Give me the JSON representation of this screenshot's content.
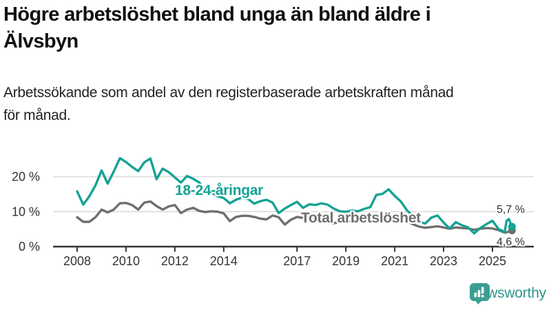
{
  "header": {
    "title_line1": "Högre arbetslöshet bland unga än bland äldre i",
    "title_line2": "Älvsbyn",
    "subtitle_line1": "Arbetssökande som andel av den registerbaserade arbetskraften månad",
    "subtitle_line2": "för månad."
  },
  "chart_data": {
    "type": "line",
    "title": "Högre arbetslöshet bland unga än bland äldre i Älvsbyn",
    "subtitle": "Arbetssökande som andel av den registerbaserade arbetskraften månad för månad.",
    "unit": "%",
    "grid": "horizontal",
    "xlim": [
      2007.0,
      2026.7
    ],
    "ylim": [
      0,
      28
    ],
    "x_ticks": [
      2008,
      2010,
      2012,
      2014,
      2017,
      2019,
      2021,
      2023,
      2025
    ],
    "x_tick_labels": [
      "2008",
      "2010",
      "2012",
      "2014",
      "2017",
      "2019",
      "2021",
      "2023",
      "2025"
    ],
    "y_ticks": [
      0,
      10,
      20
    ],
    "y_tick_labels": [
      "0 %",
      "10 %",
      "20 %"
    ],
    "x": [
      2008,
      2008.25,
      2008.5,
      2008.75,
      2009,
      2009.25,
      2009.5,
      2009.75,
      2010,
      2010.25,
      2010.5,
      2010.75,
      2011,
      2011.25,
      2011.5,
      2011.75,
      2012,
      2012.25,
      2012.5,
      2012.75,
      2013,
      2013.25,
      2013.5,
      2013.75,
      2014,
      2014.25,
      2014.5,
      2014.75,
      2015,
      2015.25,
      2015.5,
      2015.75,
      2016,
      2016.25,
      2016.5,
      2016.75,
      2017,
      2017.25,
      2017.5,
      2017.75,
      2018,
      2018.25,
      2018.5,
      2018.75,
      2019,
      2019.25,
      2019.5,
      2019.75,
      2020,
      2020.25,
      2020.5,
      2020.75,
      2021,
      2021.25,
      2021.5,
      2021.75,
      2022,
      2022.25,
      2022.5,
      2022.75,
      2023,
      2023.25,
      2023.5,
      2023.75,
      2024,
      2024.25,
      2024.5,
      2024.75,
      2025,
      2025.25,
      2025.5,
      2025.58,
      2025.67,
      2025.8
    ],
    "series": [
      {
        "name": "Total arbetslöshet",
        "label": "Total arbetslöshet",
        "color": "#6f6f6f",
        "end_label": "4,6 %",
        "end_value": 4.6,
        "values": [
          8.4,
          7.1,
          7.1,
          8.4,
          10.6,
          9.8,
          10.6,
          12.4,
          12.5,
          11.9,
          10.6,
          12.6,
          12.9,
          11.6,
          10.6,
          11.5,
          11.9,
          9.6,
          10.6,
          11.1,
          10.2,
          9.9,
          10.1,
          10.0,
          9.5,
          7.3,
          8.5,
          8.8,
          8.8,
          8.5,
          8.0,
          7.8,
          8.9,
          8.4,
          6.3,
          7.7,
          8.5,
          8.2,
          7.9,
          8.0,
          7.7,
          7.1,
          6.7,
          7.0,
          7.4,
          7.2,
          7.1,
          7.5,
          7.9,
          8.8,
          9.1,
          9.0,
          8.5,
          8.0,
          7.2,
          6.4,
          5.7,
          5.4,
          5.6,
          5.8,
          5.5,
          5.1,
          5.5,
          5.3,
          5.2,
          4.8,
          5.1,
          5.3,
          5.2,
          4.7,
          4.0,
          4.1,
          4.3,
          4.6
        ]
      },
      {
        "name": "18-24-åringar",
        "label": "18-24-åringar",
        "color": "#15a294",
        "end_label": "5,7 %",
        "end_value": 5.7,
        "values": [
          15.8,
          12.0,
          14.4,
          17.5,
          21.8,
          18.0,
          21.5,
          25.3,
          24.2,
          22.8,
          21.6,
          24.1,
          25.2,
          19.3,
          22.3,
          21.3,
          19.8,
          18.3,
          20.2,
          19.4,
          18.3,
          16.6,
          15.4,
          14.4,
          13.9,
          12.4,
          13.4,
          14.0,
          13.6,
          12.3,
          13.0,
          13.4,
          12.6,
          9.6,
          10.9,
          11.9,
          12.8,
          11.1,
          12.1,
          11.9,
          12.4,
          12.0,
          10.9,
          10.1,
          10.0,
          10.3,
          10.1,
          10.8,
          11.3,
          14.8,
          15.1,
          16.4,
          14.5,
          12.9,
          10.4,
          8.7,
          7.1,
          6.6,
          8.3,
          8.9,
          6.9,
          5.2,
          7.0,
          6.1,
          5.5,
          3.8,
          5.3,
          6.4,
          7.4,
          5.0,
          4.2,
          7.4,
          7.9,
          5.7
        ]
      }
    ],
    "colors": {
      "grid": "#d9d9d9",
      "axis": "#333333",
      "tick_text": "#333333",
      "value_text": "#333333"
    }
  },
  "footer": {
    "logo_text": "Newsworthy",
    "logo_color": "#3d9d92"
  }
}
